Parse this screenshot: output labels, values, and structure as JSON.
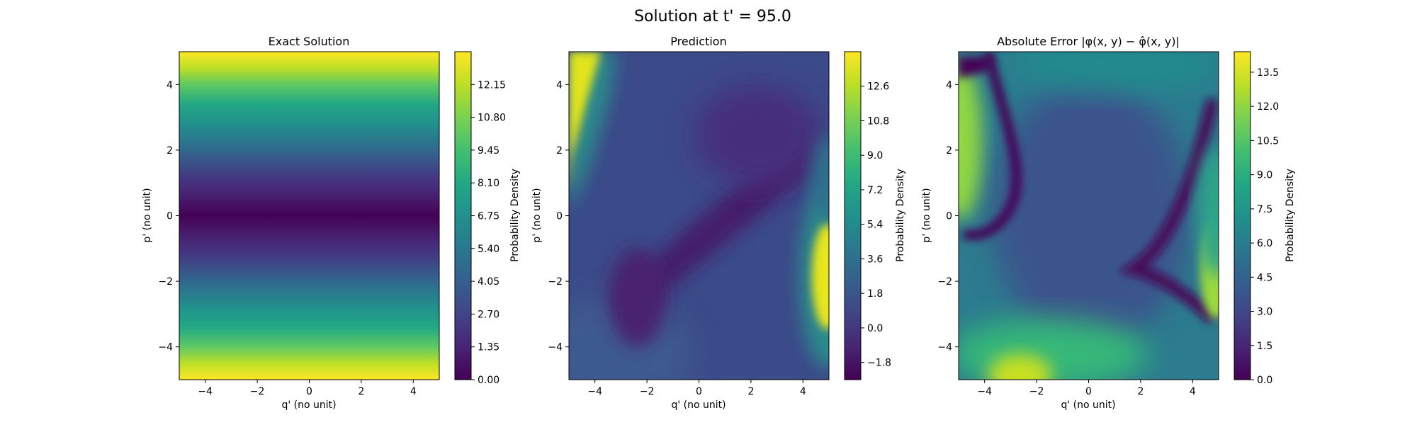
{
  "figure": {
    "suptitle": "Solution at t' = 95.0"
  },
  "chart_data": [
    {
      "type": "heatmap",
      "title": "Exact Solution",
      "xlabel": "q' (no unit)",
      "ylabel": "p' (no unit)",
      "colorbar_label": "Probability Density",
      "colormap": "viridis",
      "xlim": [
        -5,
        5
      ],
      "ylim": [
        -5,
        5
      ],
      "xticks": [
        "−4",
        "−2",
        "0",
        "2",
        "4"
      ],
      "yticks": [
        "−4",
        "−2",
        "0",
        "2",
        "4"
      ],
      "clim": [
        0.0,
        13.5
      ],
      "colorbar_ticks": [
        "0.00",
        "1.35",
        "2.70",
        "4.05",
        "5.40",
        "6.75",
        "8.10",
        "9.45",
        "10.80",
        "12.15"
      ],
      "field": "p^2/2"
    },
    {
      "type": "heatmap",
      "title": "Prediction",
      "xlabel": "q' (no unit)",
      "ylabel": "p' (no unit)",
      "colorbar_label": "Probability Density",
      "colormap": "viridis",
      "xlim": [
        -5,
        5
      ],
      "ylim": [
        -5,
        5
      ],
      "xticks": [
        "−4",
        "−2",
        "0",
        "2",
        "4"
      ],
      "yticks": [
        "−4",
        "−2",
        "0",
        "2",
        "4"
      ],
      "clim": [
        -2.7,
        14.4
      ],
      "colorbar_ticks": [
        "−1.8",
        "0.0",
        "1.8",
        "3.6",
        "5.4",
        "7.2",
        "9.0",
        "10.8",
        "12.6"
      ],
      "features": [
        "bright band upper-left",
        "bright lobe right edge near p'=-2",
        "dark diagonal ridge center"
      ]
    },
    {
      "type": "heatmap",
      "title": "Absolute Error |φ(x, y) − φ̂(x, y)|",
      "xlabel": "q' (no unit)",
      "ylabel": "p' (no unit)",
      "colorbar_label": "Probability Density",
      "colormap": "viridis",
      "xlim": [
        -5,
        5
      ],
      "ylim": [
        -5,
        5
      ],
      "xticks": [
        "−4",
        "−2",
        "0",
        "2",
        "4"
      ],
      "yticks": [
        "−4",
        "−2",
        "0",
        "2",
        "4"
      ],
      "clim": [
        0.0,
        14.4
      ],
      "colorbar_ticks": [
        "0.0",
        "1.5",
        "3.0",
        "4.5",
        "6.0",
        "7.5",
        "9.0",
        "10.5",
        "12.0",
        "13.5"
      ]
    }
  ]
}
